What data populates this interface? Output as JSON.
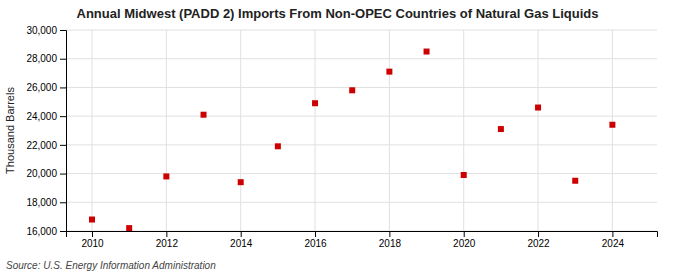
{
  "chart_data": {
    "type": "scatter",
    "title": "Annual Midwest (PADD 2) Imports From Non-OPEC Countries of Natural Gas Liquids",
    "ylabel": "Thousand Barrels",
    "source": "Source: U.S. Energy Information Administration",
    "x": [
      2010,
      2011,
      2012,
      2013,
      2014,
      2015,
      2016,
      2017,
      2018,
      2019,
      2020,
      2021,
      2022,
      2023,
      2024
    ],
    "values": [
      16800,
      16200,
      19800,
      24100,
      19400,
      21900,
      24900,
      25800,
      27100,
      28500,
      19900,
      23100,
      24600,
      19500,
      23400
    ],
    "color": "#cc0000",
    "marker": "square",
    "xlim": [
      2009.3,
      2025.2
    ],
    "xticks": [
      2010,
      2012,
      2014,
      2016,
      2018,
      2020,
      2022,
      2024
    ],
    "ylim": [
      16000,
      30000
    ],
    "yticks": [
      {
        "value": 16000,
        "label": "16,000"
      },
      {
        "value": 18000,
        "label": "18,000"
      },
      {
        "value": 20000,
        "label": "20,000"
      },
      {
        "value": 22000,
        "label": "22,000"
      },
      {
        "value": 24000,
        "label": "24,000"
      },
      {
        "value": 26000,
        "label": "26,000"
      },
      {
        "value": 28000,
        "label": "28,000"
      },
      {
        "value": 30000,
        "label": "30,000"
      }
    ],
    "grid": true
  }
}
